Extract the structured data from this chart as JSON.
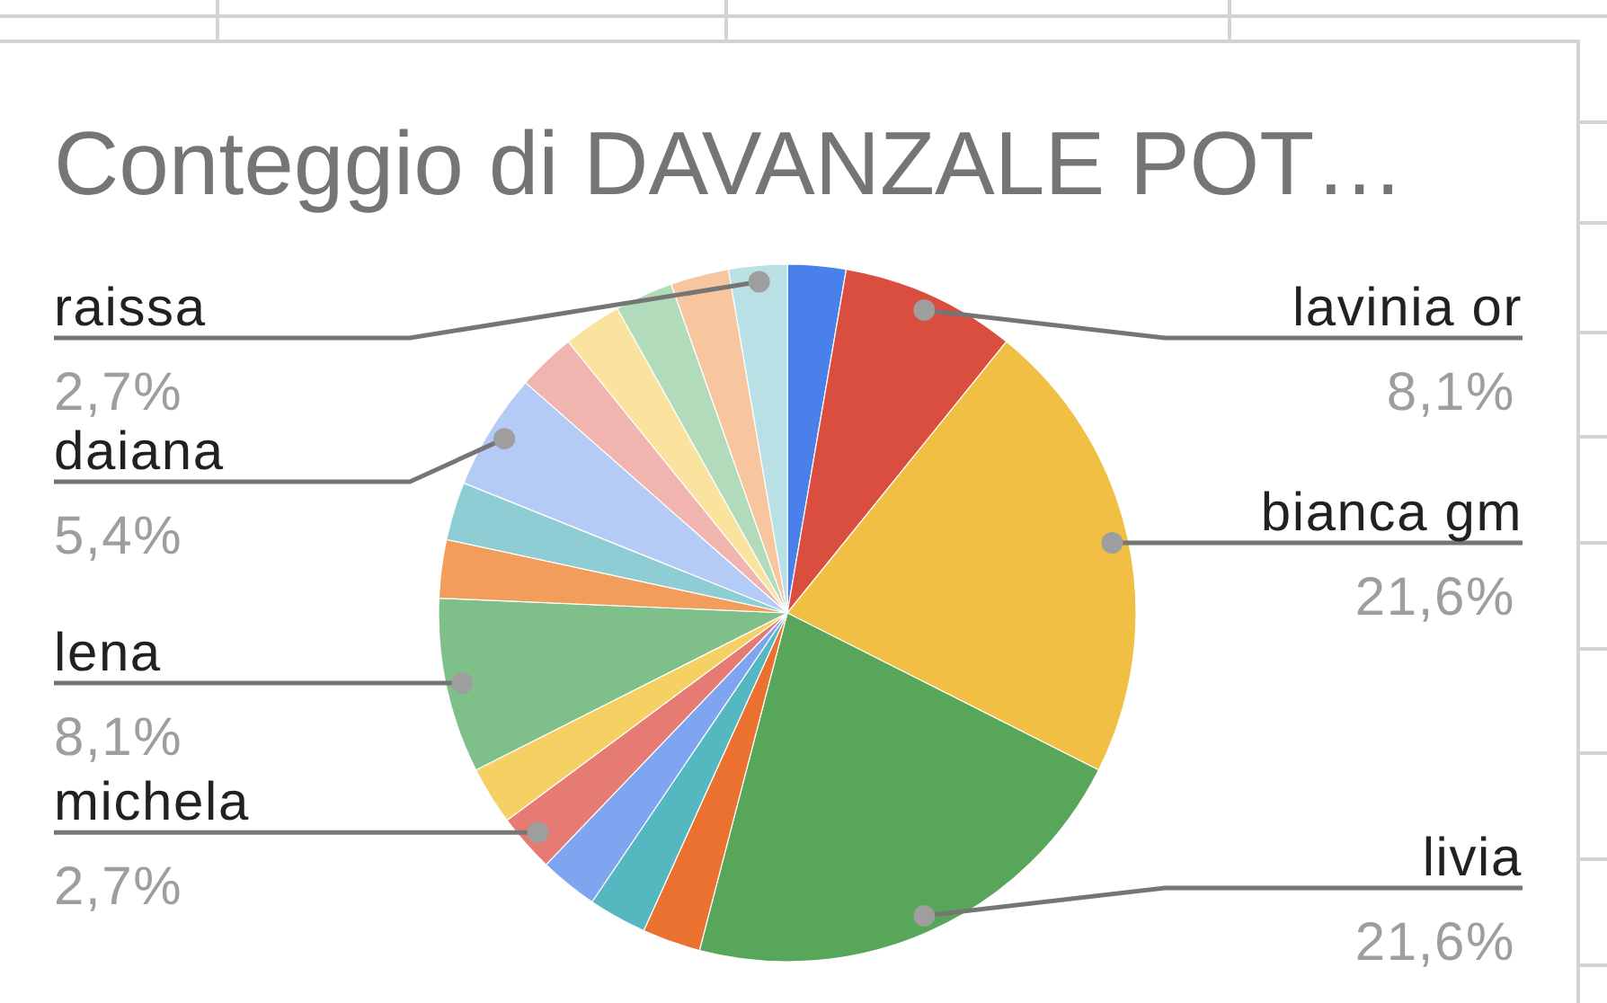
{
  "chart_data": {
    "type": "pie",
    "title": "Conteggio di DAVANZALE POT…",
    "categories": [
      null,
      "lavinia or",
      "bianca gm",
      "livia",
      null,
      null,
      null,
      "michela",
      null,
      "lena",
      null,
      null,
      "daiana",
      null,
      null,
      null,
      null,
      "raissa"
    ],
    "values": [
      2.7,
      8.1,
      21.6,
      21.6,
      2.7,
      2.7,
      2.7,
      2.7,
      2.7,
      8.1,
      2.7,
      2.7,
      5.4,
      2.7,
      2.7,
      2.7,
      2.7,
      2.7
    ],
    "value_labels": [
      null,
      "8,1%",
      "21,6%",
      "21,6%",
      null,
      null,
      null,
      "2,7%",
      null,
      "8,1%",
      null,
      null,
      "5,4%",
      null,
      null,
      null,
      null,
      "2,7%"
    ],
    "colors": [
      "#4a80ea",
      "#d94e3e",
      "#f0bf43",
      "#57a65a",
      "#ea7130",
      "#55b8c0",
      "#7fa5f0",
      "#e57b72",
      "#f5d063",
      "#7fc08a",
      "#f29d5b",
      "#8dcdd3",
      "#b4cbf6",
      "#efb5ae",
      "#f9e39e",
      "#b1dbbb",
      "#f7c59e",
      "#b8e0e5"
    ]
  }
}
